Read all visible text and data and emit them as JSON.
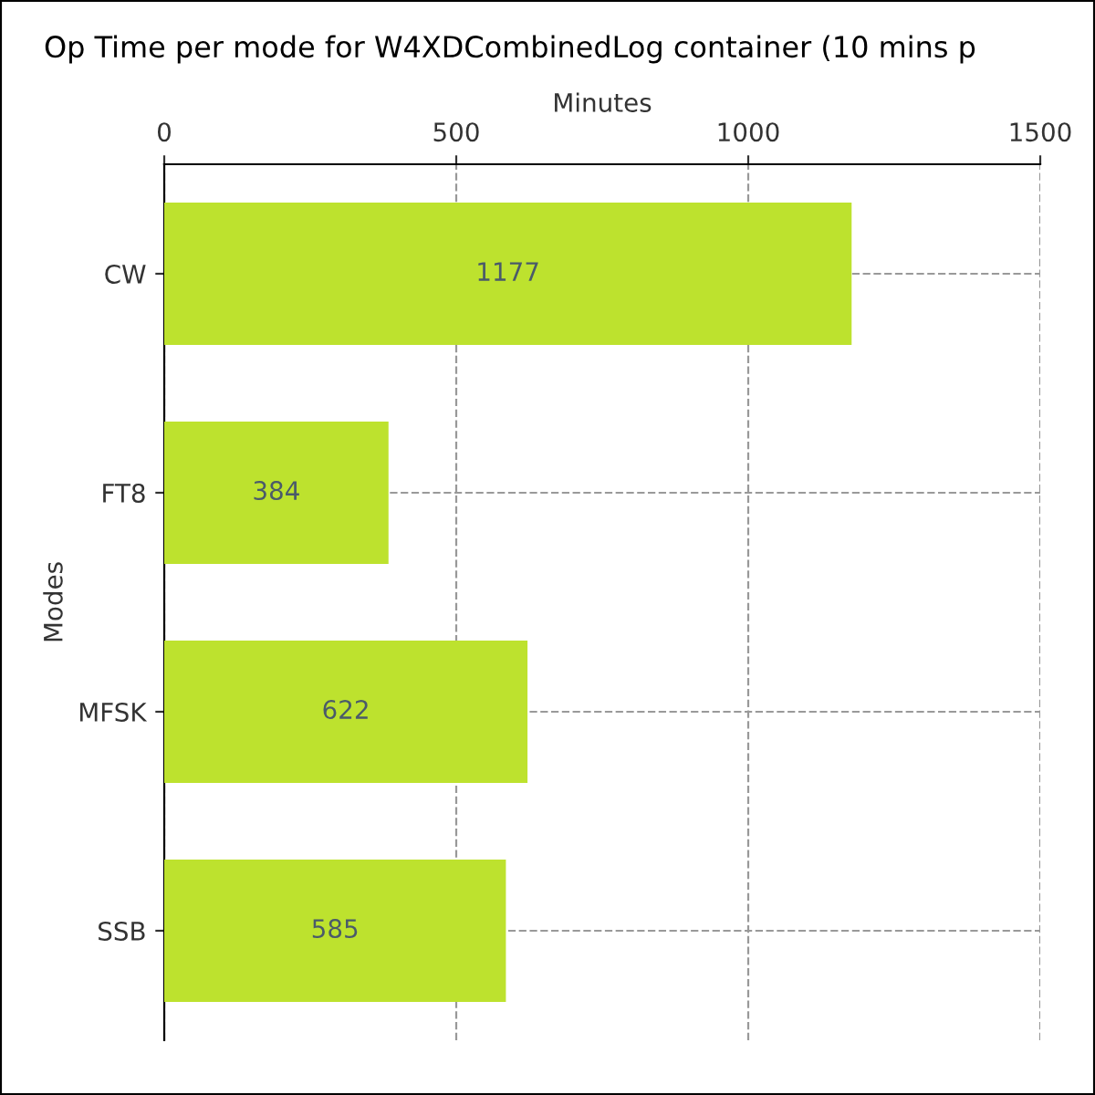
{
  "chart_data": {
    "type": "bar",
    "orientation": "horizontal",
    "title": "Op Time per mode for W4XDCombinedLog container (10 mins p",
    "xlabel": "Minutes",
    "ylabel": "Modes",
    "categories": [
      "CW",
      "FT8",
      "MFSK",
      "SSB"
    ],
    "values": [
      1177,
      384,
      622,
      585
    ],
    "color": "#bde22e",
    "xlim": [
      0,
      1500
    ],
    "xticks": [
      0,
      500,
      1000,
      1500
    ],
    "grid": true,
    "data_labels": true
  }
}
